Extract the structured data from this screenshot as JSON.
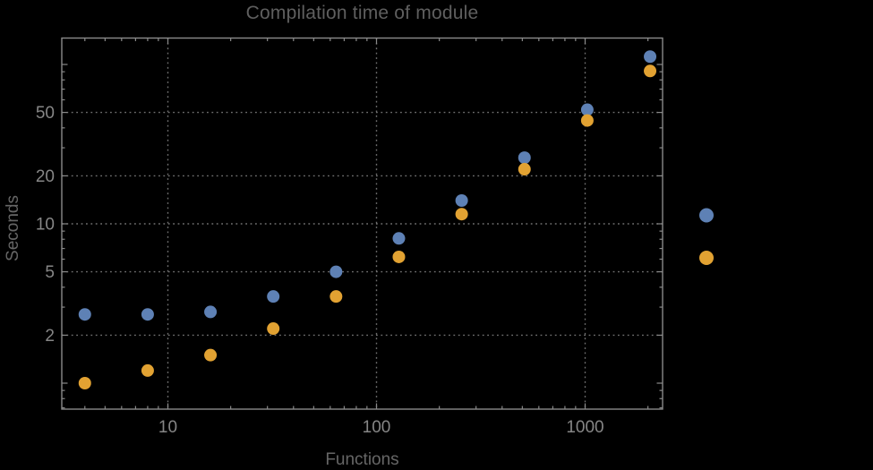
{
  "chart_data": {
    "type": "scatter",
    "title": "Compilation time of module",
    "xlabel": "Functions",
    "ylabel": "Seconds",
    "xscale": "log",
    "yscale": "log",
    "x": [
      4,
      8,
      16,
      32,
      64,
      128,
      256,
      512,
      1024,
      2048
    ],
    "series": [
      {
        "name": "series-1",
        "color": "#5E81B5",
        "values": [
          2.7,
          2.7,
          2.8,
          3.5,
          5.0,
          8.1,
          14,
          26,
          52,
          112
        ]
      },
      {
        "name": "series-2",
        "color": "#E2A232",
        "values": [
          1.0,
          1.2,
          1.5,
          2.2,
          3.5,
          6.2,
          11.5,
          22,
          44.5,
          91
        ]
      }
    ],
    "x_tick_labels": [
      "10",
      "100",
      "1000"
    ],
    "x_tick_values": [
      10,
      100,
      1000
    ],
    "y_tick_labels": [
      "2",
      "5",
      "10",
      "20",
      "50"
    ],
    "y_tick_values": [
      2,
      5,
      10,
      20,
      50
    ],
    "xlim": [
      3.2,
      2350
    ],
    "ylim": [
      0.69,
      147
    ],
    "grid": "dotted gridlines at labeled ticks only",
    "legend": {
      "position": "right-of-plot",
      "markers": [
        {
          "name": "legend-marker-series-1",
          "color": "#5E81B5",
          "label": ""
        },
        {
          "name": "legend-marker-series-2",
          "color": "#E2A232",
          "label": ""
        }
      ]
    }
  },
  "colors": {
    "background": "#000000",
    "frame": "#8a8a8a",
    "gridline": "#707070",
    "tick_label": "#868686",
    "title_text": "#5f5f5f",
    "axis_label_text": "#666666"
  }
}
